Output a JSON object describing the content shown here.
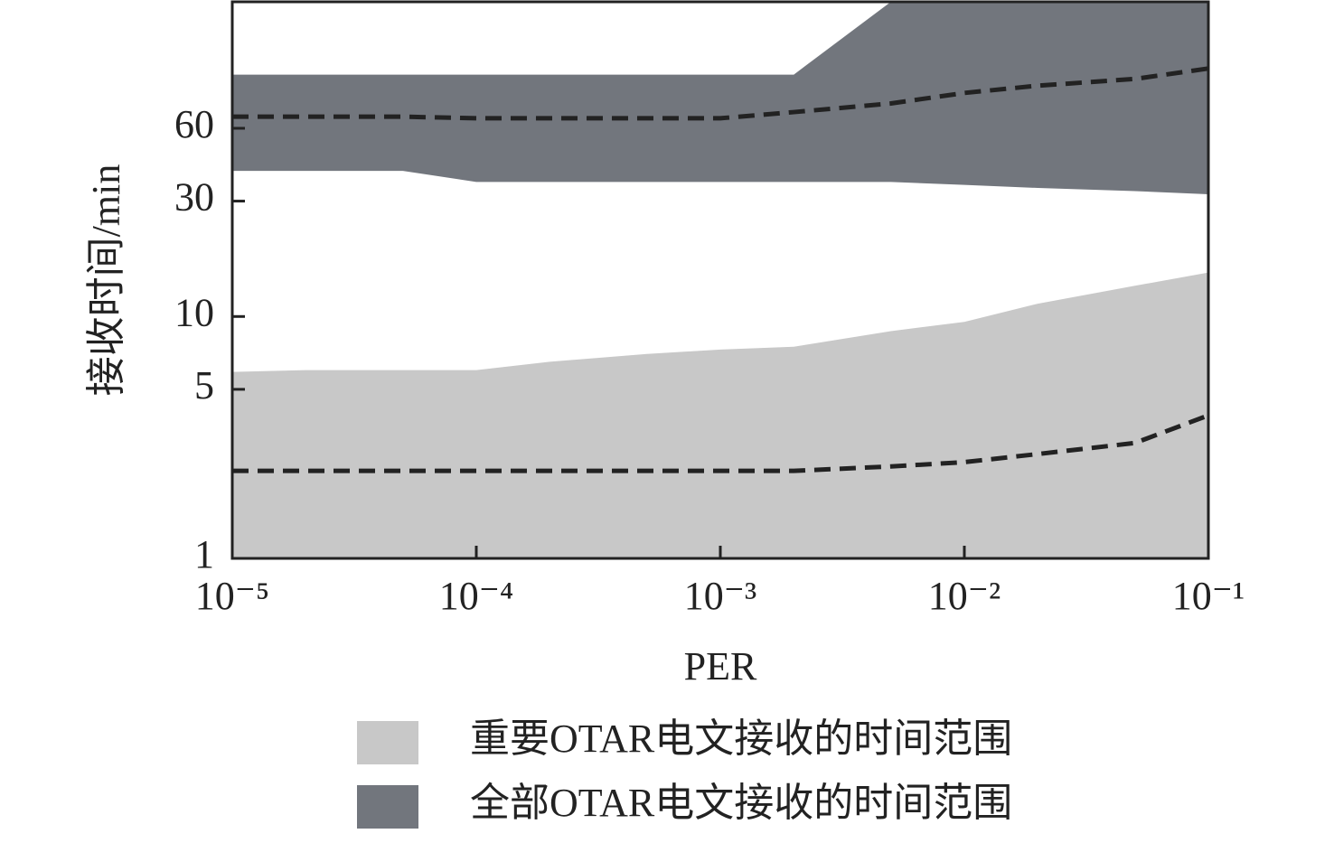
{
  "chart_data": {
    "type": "band",
    "x_label": "PER",
    "y_label": "接收时间/min",
    "xscale": "log",
    "yscale": "log",
    "xlim": [
      1e-05,
      0.1
    ],
    "ylim": [
      1,
      200
    ],
    "xticks": [
      {
        "value": 1e-05,
        "label": "10⁻⁵"
      },
      {
        "value": 0.0001,
        "label": "10⁻⁴"
      },
      {
        "value": 0.001,
        "label": "10⁻³"
      },
      {
        "value": 0.01,
        "label": "10⁻²"
      },
      {
        "value": 0.1,
        "label": "10⁻¹"
      }
    ],
    "yticks": [
      1,
      5,
      10,
      30,
      60
    ],
    "x": [
      1e-05,
      2e-05,
      5e-05,
      0.0001,
      0.0002,
      0.0005,
      0.001,
      0.002,
      0.005,
      0.01,
      0.02,
      0.05,
      0.1
    ],
    "series": [
      {
        "name": "全部OTAR电文接收的时间范围",
        "color": "#72767d",
        "median_color": "#222222",
        "lower": [
          40,
          40,
          40,
          36,
          36,
          36,
          36,
          36,
          36,
          35,
          34,
          33,
          32
        ],
        "upper": [
          100,
          100,
          100,
          100,
          100,
          100,
          100,
          100,
          200,
          200,
          200,
          200,
          200
        ],
        "median": [
          67,
          67,
          67,
          66,
          66,
          66,
          66,
          70,
          76,
          84,
          90,
          96,
          106
        ]
      },
      {
        "name": "重要OTAR电文接收的时间范围",
        "color": "#c8c8c8",
        "median_color": "#222222",
        "lower": [
          1,
          1,
          1,
          1,
          1,
          1,
          1,
          1,
          1,
          1,
          1,
          1,
          1
        ],
        "upper": [
          5.9,
          6,
          6,
          6,
          6.5,
          7,
          7.3,
          7.5,
          8.7,
          9.5,
          11.3,
          13.4,
          15.2
        ],
        "median": [
          2.3,
          2.3,
          2.3,
          2.3,
          2.3,
          2.3,
          2.3,
          2.3,
          2.4,
          2.5,
          2.7,
          3,
          3.9
        ]
      }
    ],
    "legend_order": [
      1,
      0
    ]
  }
}
